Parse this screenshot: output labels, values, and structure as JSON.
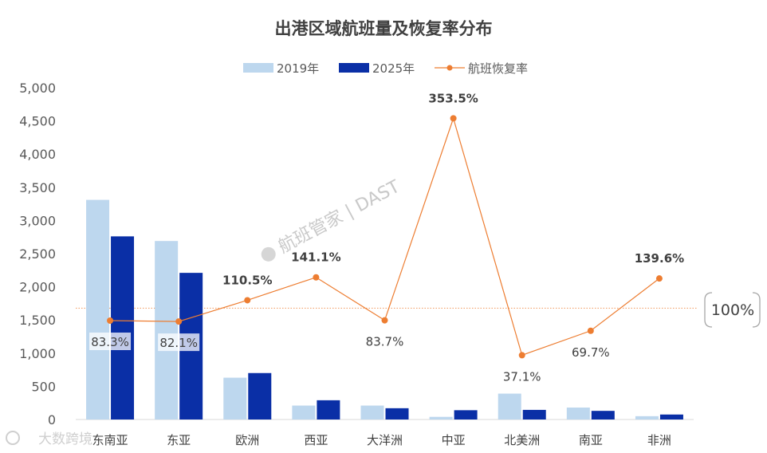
{
  "chart_data": {
    "type": "bar",
    "title": "出港区域航班量及恢复率分布",
    "categories": [
      "东南亚",
      "东亚",
      "欧洲",
      "西亚",
      "大洋洲",
      "中亚",
      "北美洲",
      "南亚",
      "非洲"
    ],
    "series": [
      {
        "name": "2019年",
        "type": "bar",
        "color": "#bdd7ee",
        "values": [
          3310,
          2690,
          630,
          210,
          210,
          40,
          390,
          180,
          50
        ]
      },
      {
        "name": "2025年",
        "type": "bar",
        "color": "#0a2fa6",
        "values": [
          2760,
          2210,
          700,
          290,
          170,
          140,
          145,
          130,
          75
        ]
      },
      {
        "name": "航班恢复率",
        "type": "line",
        "color": "#ed7d31",
        "axis": "secondary",
        "values": [
          83.3,
          82.1,
          110.5,
          141.1,
          83.7,
          353.5,
          37.1,
          69.7,
          139.6
        ],
        "labels": [
          "83.3%",
          "82.1%",
          "110.5%",
          "141.1%",
          "83.7%",
          "353.5%",
          "37.1%",
          "69.7%",
          "139.6%"
        ]
      }
    ],
    "y_ticks": [
      "0",
      "500",
      "1,000",
      "1,500",
      "2,000",
      "2,500",
      "3,000",
      "3,500",
      "4,000",
      "4,500",
      "5,000"
    ],
    "ylim": [
      0,
      5000
    ],
    "reference_line": {
      "value": 100,
      "label": "100%"
    },
    "legend_position": "top-center",
    "grid": false
  },
  "watermark": {
    "center_text": "航班管家 | DAST",
    "corner_text": "大数跨境"
  }
}
